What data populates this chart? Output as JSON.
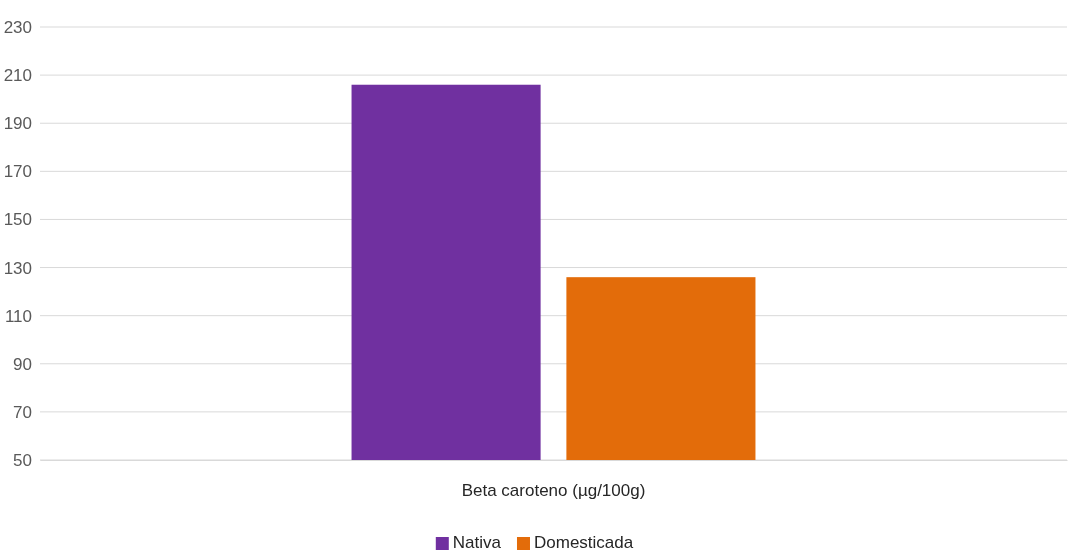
{
  "chart_data": {
    "type": "bar",
    "categories": [
      "Beta caroteno (µg/100g)"
    ],
    "series": [
      {
        "name": "Nativa",
        "color": "#7030a0",
        "values": [
          206
        ]
      },
      {
        "name": "Domesticada",
        "color": "#e36c0a",
        "values": [
          126
        ]
      }
    ],
    "ylim": [
      50,
      230
    ],
    "yticks": [
      50,
      70,
      90,
      110,
      130,
      150,
      170,
      190,
      210,
      230
    ],
    "grid": "y",
    "legend": "bottom"
  }
}
